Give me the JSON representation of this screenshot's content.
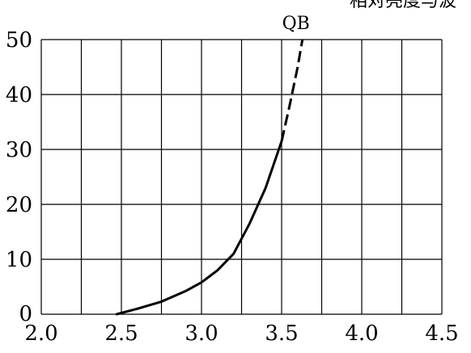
{
  "chart_data": {
    "type": "line",
    "title": "相对亮度与波",
    "xlabel": "",
    "ylabel": "",
    "xlim": [
      2.0,
      4.5
    ],
    "ylim": [
      0,
      50
    ],
    "x_ticks": [
      2.0,
      2.5,
      3.0,
      3.5,
      4.0,
      4.5
    ],
    "x_tick_labels": [
      "2.0",
      "2.5",
      "3.0",
      "3.5",
      "4.0",
      "4.5"
    ],
    "y_ticks": [
      0,
      10,
      20,
      30,
      40,
      50
    ],
    "y_tick_labels": [
      "0",
      "10",
      "20",
      "30",
      "40",
      "50"
    ],
    "grid": true,
    "series": [
      {
        "name": "QB",
        "color": "#000000",
        "solid": {
          "x": [
            2.47,
            2.6,
            2.75,
            2.9,
            3.0,
            3.1,
            3.2,
            3.3,
            3.4,
            3.5
          ],
          "y": [
            0,
            1,
            2.3,
            4.2,
            5.8,
            8,
            11,
            16.5,
            23,
            31.5
          ]
        },
        "dashed": {
          "x": [
            3.5,
            3.55,
            3.6,
            3.63
          ],
          "y": [
            31.5,
            38,
            45,
            50
          ]
        }
      }
    ]
  }
}
